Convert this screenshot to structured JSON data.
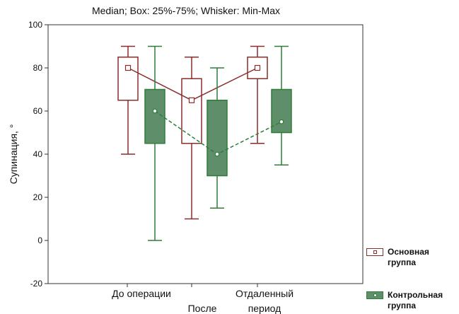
{
  "chart_data": {
    "type": "box",
    "title": "Median; Box: 25%-75%; Whisker: Min-Max",
    "ylabel": "Супинация, °",
    "xlabel": "",
    "ylim": [
      -20,
      100
    ],
    "yticks": [
      -20,
      0,
      20,
      40,
      60,
      80,
      100
    ],
    "categories": [
      "До операции",
      "После",
      "Отдаленный период"
    ],
    "series": [
      {
        "name": "Основная группа",
        "color": "#8b2d2d",
        "fill": "#ffffff",
        "marker": "square",
        "line_style": "solid",
        "boxes": [
          {
            "min": 40,
            "q1": 65,
            "median": 80,
            "q3": 85,
            "max": 90
          },
          {
            "min": 10,
            "q1": 45,
            "median": 65,
            "q3": 75,
            "max": 85
          },
          {
            "min": 45,
            "q1": 75,
            "median": 80,
            "q3": 85,
            "max": 90
          }
        ]
      },
      {
        "name": "Контрольная группа",
        "color": "#2e7d3a",
        "fill": "#5e8f6a",
        "marker": "circle",
        "line_style": "dashed",
        "boxes": [
          {
            "min": 0,
            "q1": 45,
            "median": 60,
            "q3": 70,
            "max": 90
          },
          {
            "min": 15,
            "q1": 30,
            "median": 40,
            "q3": 65,
            "max": 80
          },
          {
            "min": 35,
            "q1": 50,
            "median": 55,
            "q3": 70,
            "max": 90
          }
        ]
      }
    ],
    "legend": {
      "position": "right",
      "entries": [
        {
          "line1": "Основная",
          "line2": "группа"
        },
        {
          "line1": "Контрольная",
          "line2": "группа"
        }
      ]
    },
    "category_labels": {
      "c1": "До операции",
      "c2": "После",
      "c3a": "Отдаленный",
      "c3b": "период"
    },
    "grid": false
  }
}
